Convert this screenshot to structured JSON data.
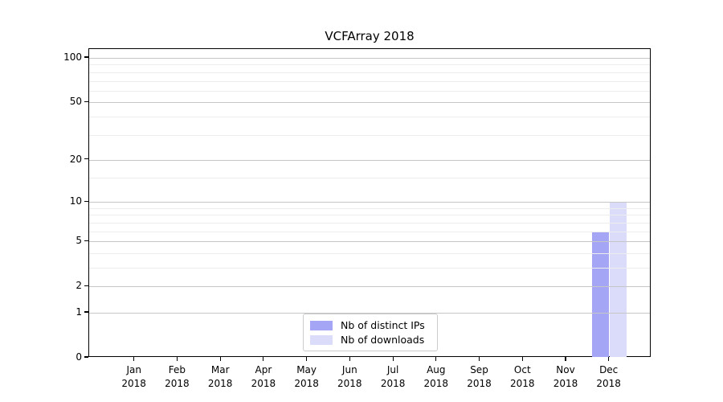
{
  "title": "VCFArray 2018",
  "legend": {
    "items": [
      {
        "label": "Nb of distinct IPs",
        "color": "#a5a5f6"
      },
      {
        "label": "Nb of downloads",
        "color": "#dbdbfa"
      }
    ]
  },
  "colors": {
    "distinct_ips_bar": "#a5a5f6",
    "downloads_bar": "#dbdbfa",
    "major_gridline": "#c6c6c6",
    "minor_gridline": "#ededed",
    "axis": "#000000"
  },
  "chart_data": {
    "type": "bar",
    "title": "VCFArray 2018",
    "categories": [
      "Jan 2018",
      "Feb 2018",
      "Mar 2018",
      "Apr 2018",
      "May 2018",
      "Jun 2018",
      "Jul 2018",
      "Aug 2018",
      "Sep 2018",
      "Oct 2018",
      "Nov 2018",
      "Dec 2018"
    ],
    "x_tick_lines": [
      {
        "month": "Jan",
        "year": "2018"
      },
      {
        "month": "Feb",
        "year": "2018"
      },
      {
        "month": "Mar",
        "year": "2018"
      },
      {
        "month": "Apr",
        "year": "2018"
      },
      {
        "month": "May",
        "year": "2018"
      },
      {
        "month": "Jun",
        "year": "2018"
      },
      {
        "month": "Jul",
        "year": "2018"
      },
      {
        "month": "Aug",
        "year": "2018"
      },
      {
        "month": "Sep",
        "year": "2018"
      },
      {
        "month": "Oct",
        "year": "2018"
      },
      {
        "month": "Nov",
        "year": "2018"
      },
      {
        "month": "Dec",
        "year": "2018"
      }
    ],
    "series": [
      {
        "name": "Nb of distinct IPs",
        "color": "#a5a5f6",
        "values": [
          0,
          0,
          0,
          0,
          0,
          0,
          0,
          0,
          0,
          0,
          0,
          6
        ]
      },
      {
        "name": "Nb of downloads",
        "color": "#dbdbfa",
        "values": [
          0,
          0,
          0,
          0,
          0,
          0,
          0,
          0,
          0,
          0,
          0,
          10
        ]
      }
    ],
    "xlabel": "",
    "ylabel": "",
    "y_axis": {
      "scale": "log10(1+y)",
      "range": [
        0,
        115
      ],
      "major_ticks": [
        100,
        50,
        20,
        10,
        5,
        2,
        1,
        0
      ],
      "minor_ticks": [
        3,
        4,
        6,
        7,
        8,
        9,
        15,
        30,
        40,
        60,
        70,
        80,
        90
      ]
    },
    "grid": true,
    "grid_above_bars": true,
    "legend_position": "lower center (inside plot)"
  }
}
